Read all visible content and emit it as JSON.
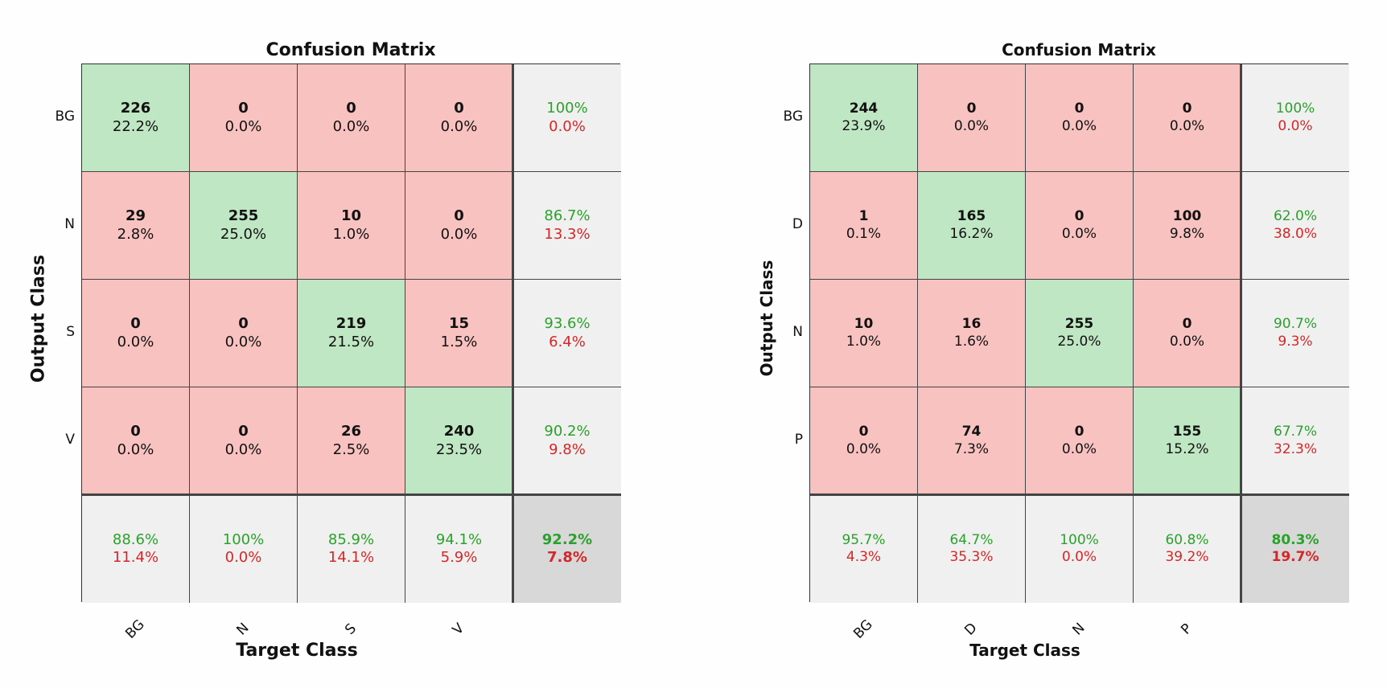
{
  "chart_data": [
    {
      "type": "heatmap",
      "title": "Confusion Matrix",
      "xlabel": "Target Class",
      "ylabel": "Output Class",
      "classes": [
        "BG",
        "N",
        "S",
        "V"
      ],
      "cells": [
        [
          {
            "count": "226",
            "pct": "22.2%"
          },
          {
            "count": "0",
            "pct": "0.0%"
          },
          {
            "count": "0",
            "pct": "0.0%"
          },
          {
            "count": "0",
            "pct": "0.0%"
          }
        ],
        [
          {
            "count": "29",
            "pct": "2.8%"
          },
          {
            "count": "255",
            "pct": "25.0%"
          },
          {
            "count": "10",
            "pct": "1.0%"
          },
          {
            "count": "0",
            "pct": "0.0%"
          }
        ],
        [
          {
            "count": "0",
            "pct": "0.0%"
          },
          {
            "count": "0",
            "pct": "0.0%"
          },
          {
            "count": "219",
            "pct": "21.5%"
          },
          {
            "count": "15",
            "pct": "1.5%"
          }
        ],
        [
          {
            "count": "0",
            "pct": "0.0%"
          },
          {
            "count": "0",
            "pct": "0.0%"
          },
          {
            "count": "26",
            "pct": "2.5%"
          },
          {
            "count": "240",
            "pct": "23.5%"
          }
        ]
      ],
      "row_summary": [
        {
          "correct": "100%",
          "error": "0.0%"
        },
        {
          "correct": "86.7%",
          "error": "13.3%"
        },
        {
          "correct": "93.6%",
          "error": "6.4%"
        },
        {
          "correct": "90.2%",
          "error": "9.8%"
        }
      ],
      "col_summary": [
        {
          "correct": "88.6%",
          "error": "11.4%"
        },
        {
          "correct": "100%",
          "error": "0.0%"
        },
        {
          "correct": "85.9%",
          "error": "14.1%"
        },
        {
          "correct": "94.1%",
          "error": "5.9%"
        }
      ],
      "overall": {
        "correct": "92.2%",
        "error": "7.8%"
      }
    },
    {
      "type": "heatmap",
      "title": "Confusion Matrix",
      "xlabel": "Target Class",
      "ylabel": "Output Class",
      "classes": [
        "BG",
        "D",
        "N",
        "P"
      ],
      "cells": [
        [
          {
            "count": "244",
            "pct": "23.9%"
          },
          {
            "count": "0",
            "pct": "0.0%"
          },
          {
            "count": "0",
            "pct": "0.0%"
          },
          {
            "count": "0",
            "pct": "0.0%"
          }
        ],
        [
          {
            "count": "1",
            "pct": "0.1%"
          },
          {
            "count": "165",
            "pct": "16.2%"
          },
          {
            "count": "0",
            "pct": "0.0%"
          },
          {
            "count": "100",
            "pct": "9.8%"
          }
        ],
        [
          {
            "count": "10",
            "pct": "1.0%"
          },
          {
            "count": "16",
            "pct": "1.6%"
          },
          {
            "count": "255",
            "pct": "25.0%"
          },
          {
            "count": "0",
            "pct": "0.0%"
          }
        ],
        [
          {
            "count": "0",
            "pct": "0.0%"
          },
          {
            "count": "74",
            "pct": "7.3%"
          },
          {
            "count": "0",
            "pct": "0.0%"
          },
          {
            "count": "155",
            "pct": "15.2%"
          }
        ]
      ],
      "row_summary": [
        {
          "correct": "100%",
          "error": "0.0%"
        },
        {
          "correct": "62.0%",
          "error": "38.0%"
        },
        {
          "correct": "90.7%",
          "error": "9.3%"
        },
        {
          "correct": "67.7%",
          "error": "32.3%"
        }
      ],
      "col_summary": [
        {
          "correct": "95.7%",
          "error": "4.3%"
        },
        {
          "correct": "64.7%",
          "error": "35.3%"
        },
        {
          "correct": "100%",
          "error": "0.0%"
        },
        {
          "correct": "60.8%",
          "error": "39.2%"
        }
      ],
      "overall": {
        "correct": "80.3%",
        "error": "19.7%"
      }
    }
  ],
  "colors": {
    "diagonal": "#bfe7c4",
    "off_diagonal": "#f8c2c0",
    "summary": "#f0f0f0",
    "overall": "#d8d8d8",
    "correct_text": "#2ca02c",
    "error_text": "#d62728"
  }
}
